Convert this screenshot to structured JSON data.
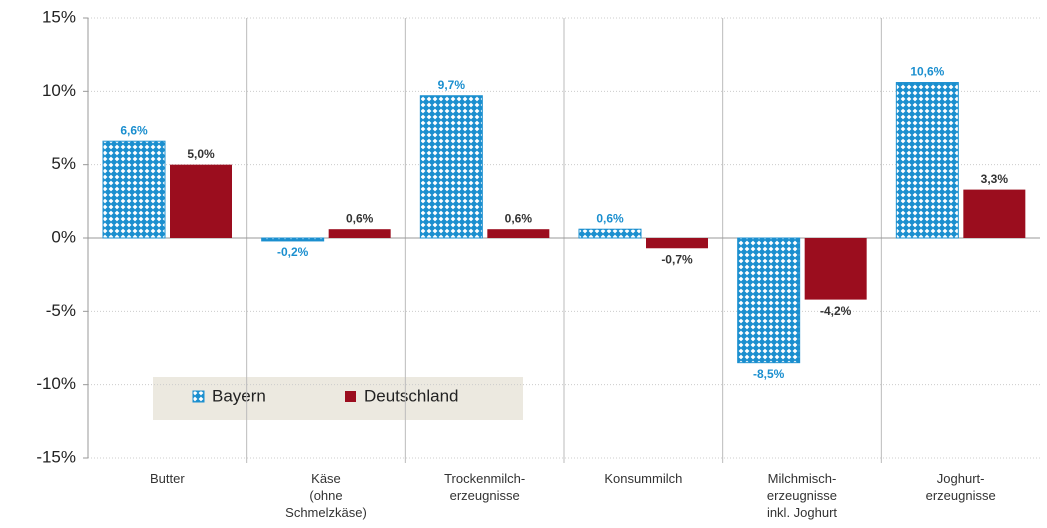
{
  "chart_data": {
    "type": "bar",
    "categories": [
      "Butter",
      "Käse\n(ohne\nSchmelzkäse)",
      "Trockenmilch-\nerzeugnisse",
      "Konsummilch",
      "Milchmisch-\nerzeugnisse\ninkl. Joghurt",
      "Joghurt-\nerzeugnisse"
    ],
    "series": [
      {
        "name": "Bayern",
        "color": "#1b8fcf",
        "pattern": "diamond",
        "values": [
          6.6,
          -0.2,
          9.7,
          0.6,
          -8.5,
          10.6
        ],
        "value_labels": [
          "6,6%",
          "-0,2%",
          "9,7%",
          "0,6%",
          "-8,5%",
          "10,6%"
        ]
      },
      {
        "name": "Deutschland",
        "color": "#9b0d1e",
        "values": [
          5.0,
          0.6,
          0.6,
          -0.7,
          -4.2,
          3.3
        ],
        "value_labels": [
          "5,0%",
          "0,6%",
          "0,6%",
          "-0,7%",
          "-4,2%",
          "3,3%"
        ]
      }
    ],
    "ylim": [
      -15,
      15
    ],
    "yticks": [
      {
        "value": -15,
        "label": "-15%"
      },
      {
        "value": -10,
        "label": "-10%"
      },
      {
        "value": -5,
        "label": "-5%"
      },
      {
        "value": 0,
        "label": "0%"
      },
      {
        "value": 5,
        "label": "5%"
      },
      {
        "value": 10,
        "label": "10%"
      },
      {
        "value": 15,
        "label": "15%"
      }
    ],
    "grid": true
  }
}
